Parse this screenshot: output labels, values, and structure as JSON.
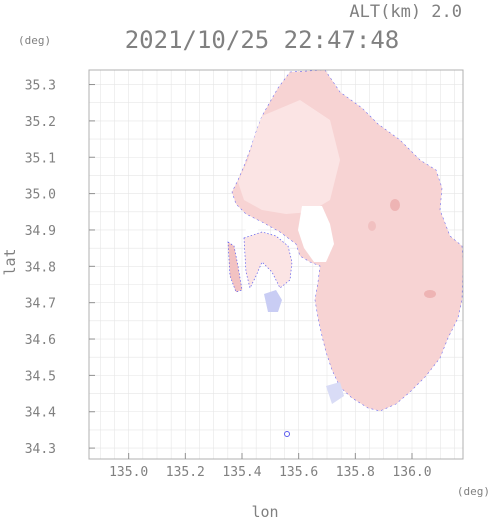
{
  "header": {
    "altitude_label": "ALT(km) 2.0",
    "datetime": "2021/10/25 22:47:48"
  },
  "chart_data": {
    "type": "heatmap",
    "xlabel": "lon",
    "ylabel": "lat",
    "x_unit": "(deg)",
    "y_unit": "(deg)",
    "xlim": [
      134.86,
      136.18
    ],
    "ylim": [
      34.27,
      35.34
    ],
    "x_ticks": [
      "135.0",
      "135.2",
      "135.4",
      "135.6",
      "135.8",
      "136.0"
    ],
    "y_ticks": [
      "34.3",
      "34.4",
      "34.5",
      "34.6",
      "34.7",
      "34.8",
      "34.9",
      "35.0",
      "35.1",
      "35.2",
      "35.3"
    ],
    "grid": true,
    "colors": {
      "main_echo": "#f7d3d3",
      "weak_echo": "#fbe4e4",
      "strong_echo": "#eeb4b4",
      "negative_echo": "#c9cdf4",
      "outline": "#3a3ae8"
    }
  }
}
